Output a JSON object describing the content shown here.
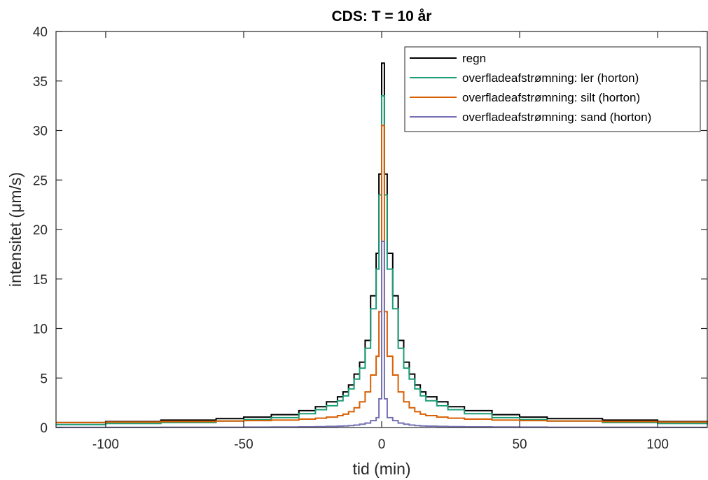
{
  "chart_data": {
    "type": "line",
    "step": true,
    "title": "CDS: T = 10 år",
    "xlabel": "tid (min)",
    "ylabel": "intensitet (μm/s)",
    "xlim": [
      -118,
      118
    ],
    "ylim": [
      0,
      40
    ],
    "xticks": [
      -100,
      -50,
      0,
      50,
      100
    ],
    "xtick_labels": [
      "-100",
      "-50",
      "0",
      "50",
      "100"
    ],
    "yticks": [
      0,
      5,
      10,
      15,
      20,
      25,
      30,
      35,
      40
    ],
    "ytick_labels": [
      "0",
      "5",
      "10",
      "15",
      "20",
      "25",
      "30",
      "35",
      "40"
    ],
    "grid": false,
    "legend_position": "top-right",
    "x": [
      -118,
      -100,
      -80,
      -60,
      -50,
      -40,
      -30,
      -24,
      -20,
      -16,
      -14,
      -12,
      -10,
      -8,
      -6,
      -4,
      -2,
      -1,
      0,
      1,
      2,
      4,
      6,
      8,
      10,
      12,
      14,
      16,
      20,
      24,
      30,
      40,
      50,
      60,
      80,
      100,
      118
    ],
    "series": [
      {
        "name": "regn",
        "color": "#000000",
        "values": [
          0.5,
          0.6,
          0.75,
          0.9,
          1.05,
          1.3,
          1.7,
          2.1,
          2.6,
          3.1,
          3.6,
          4.3,
          5.4,
          6.6,
          8.8,
          13.3,
          17.6,
          25.6,
          36.8,
          25.6,
          17.6,
          13.3,
          8.8,
          6.6,
          5.4,
          4.3,
          3.6,
          3.1,
          2.6,
          2.1,
          1.7,
          1.3,
          1.05,
          0.9,
          0.75,
          0.6,
          0.5
        ]
      },
      {
        "name": "overfladeafstrømning: ler (horton)",
        "color": "#1b9e77",
        "values": [
          0.3,
          0.4,
          0.5,
          0.65,
          0.8,
          1.0,
          1.4,
          1.8,
          2.2,
          2.7,
          3.2,
          3.9,
          4.9,
          6.0,
          8.0,
          12.0,
          16.0,
          23.5,
          33.5,
          23.5,
          16.0,
          12.0,
          8.0,
          6.0,
          4.9,
          3.9,
          3.2,
          2.7,
          2.2,
          1.8,
          1.4,
          1.0,
          0.8,
          0.65,
          0.5,
          0.4,
          0.3
        ]
      },
      {
        "name": "overfladeafstrømning: silt (horton)",
        "color": "#d95f02",
        "values": [
          0.5,
          0.55,
          0.6,
          0.65,
          0.7,
          0.75,
          0.85,
          0.95,
          1.05,
          1.2,
          1.35,
          1.6,
          2.0,
          2.6,
          3.6,
          5.3,
          7.2,
          11.7,
          30.5,
          11.7,
          7.2,
          5.3,
          3.6,
          2.6,
          2.0,
          1.6,
          1.35,
          1.2,
          1.05,
          0.95,
          0.85,
          0.75,
          0.7,
          0.65,
          0.6,
          0.55,
          0.5
        ]
      },
      {
        "name": "overfladeafstrømning: sand (horton)",
        "color": "#7570b3",
        "values": [
          0.02,
          0.02,
          0.03,
          0.03,
          0.04,
          0.05,
          0.07,
          0.09,
          0.11,
          0.14,
          0.16,
          0.2,
          0.25,
          0.33,
          0.45,
          0.7,
          1.0,
          2.9,
          18.8,
          2.9,
          1.0,
          0.7,
          0.45,
          0.33,
          0.25,
          0.2,
          0.16,
          0.14,
          0.11,
          0.09,
          0.07,
          0.05,
          0.04,
          0.03,
          0.03,
          0.02,
          0.02
        ]
      }
    ]
  }
}
